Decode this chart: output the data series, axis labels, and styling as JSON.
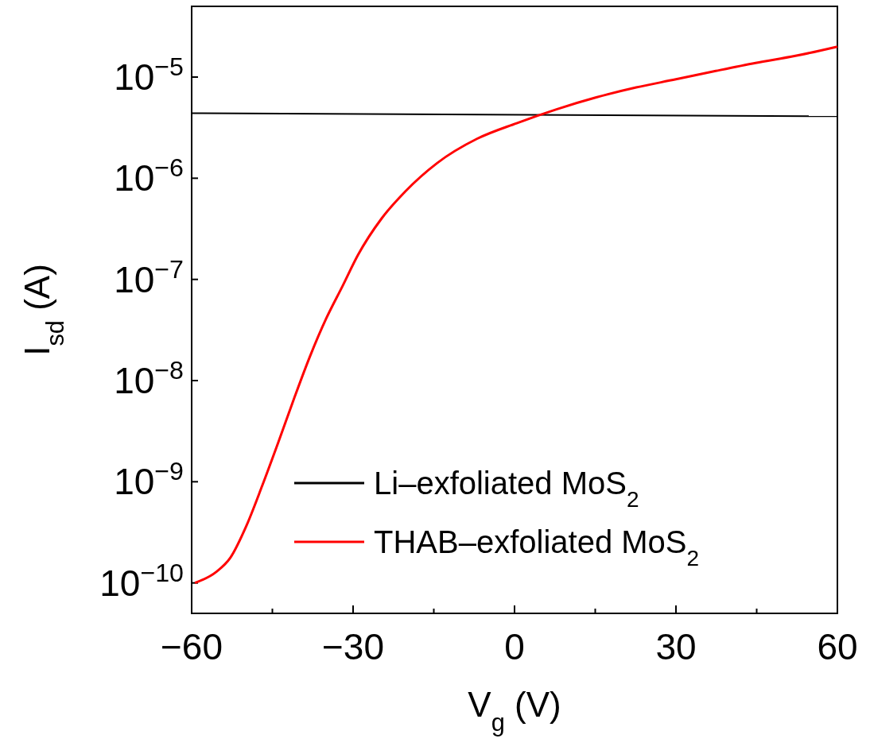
{
  "chart_data": {
    "type": "line",
    "xlabel": "V$_{g}$ (V)",
    "ylabel": "I$_{sd}$ (A)",
    "log": "y",
    "grid": false,
    "legend": "bottom right",
    "marker": "none",
    "line_style": "solid",
    "xlim": [
      -60,
      60
    ],
    "xticks": [
      -60,
      {
        "value": -45,
        "label": null
      },
      -30,
      {
        "value": -15,
        "label": null
      },
      0,
      {
        "value": 15,
        "label": null
      },
      30,
      {
        "value": 45,
        "label": null
      },
      60
    ],
    "ylim": [
      5e-11,
      5e-05
    ],
    "yticks": [
      {
        "value": 1e-10,
        "label": "10$^{−10}$"
      },
      {
        "value": 1e-09,
        "label": "10$^{−9}$"
      },
      {
        "value": 1e-08,
        "label": "10$^{−8}$"
      },
      {
        "value": 1e-07,
        "label": "10$^{−7}$"
      },
      {
        "value": 1e-06,
        "label": "10$^{−6}$"
      },
      {
        "value": 1e-05,
        "label": "10$^{−5}$"
      }
    ],
    "series": [
      {
        "name": "Li–exfoliated MoS$_{2}$",
        "color": "#000000",
        "x": [
          -60,
          60
        ],
        "values": [
          4.4e-06,
          4.1e-06
        ]
      },
      {
        "name": "THAB–exfoliated MoS$_{2}$",
        "color": "#ff0000",
        "x": [
          -59.4,
          -55.4,
          -52.8,
          -49.8,
          -46.9,
          -43.9,
          -40.9,
          -38,
          -35,
          -32,
          -29.1,
          -24.7,
          -20.3,
          -14.4,
          -7,
          0.4,
          7.8,
          15.2,
          22.6,
          30,
          37.4,
          44.8,
          52.2,
          60
        ],
        "values": [
          1e-10,
          1.29e-10,
          1.78e-10,
          3.7e-10,
          9.1e-10,
          2.45e-09,
          6.8e-09,
          1.74e-08,
          4.1e-08,
          8.5e-08,
          1.74e-07,
          4e-07,
          7.4e-07,
          1.41e-06,
          2.45e-06,
          3.5e-06,
          4.8e-06,
          6.3e-06,
          7.9e-06,
          9.5e-06,
          1.15e-05,
          1.38e-05,
          1.62e-05,
          2e-05
        ]
      }
    ]
  }
}
